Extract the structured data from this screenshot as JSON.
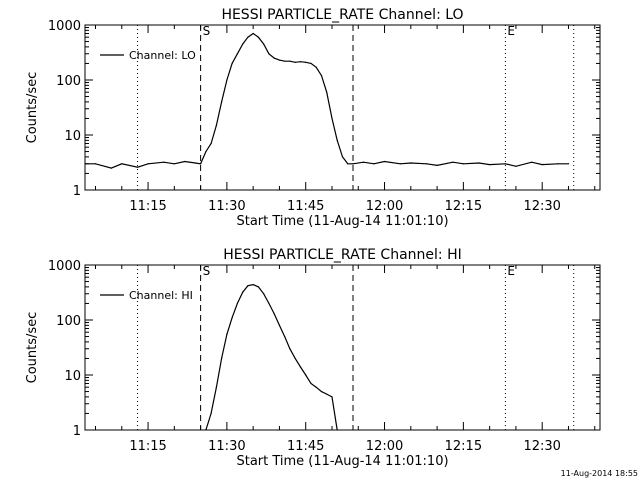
{
  "footer_timestamp": "11-Aug-2014 18:55",
  "chart_data": [
    {
      "type": "line",
      "title": "HESSI PARTICLE_RATE Channel: LO",
      "xlabel": "Start Time (11-Aug-14 11:01:10)",
      "ylabel": "Counts/sec",
      "y_scale": "log",
      "ylim": [
        1,
        1000
      ],
      "xlim": [
        "11:03",
        "12:41"
      ],
      "x_ticks": [
        "11:15",
        "11:30",
        "11:45",
        "12:00",
        "12:15",
        "12:30"
      ],
      "y_ticks": [
        "1",
        "10",
        "100",
        "1000"
      ],
      "legend": {
        "entries": [
          "Channel: LO"
        ],
        "placement": "top-left"
      },
      "vertical_markers": [
        {
          "time": "11:25",
          "style": "dashed",
          "label": "S"
        },
        {
          "time": "11:54",
          "style": "dashed",
          "label": ""
        },
        {
          "time": "11:13",
          "style": "dotted",
          "label": ""
        },
        {
          "time": "12:23",
          "style": "dotted",
          "label": "E"
        },
        {
          "time": "12:36",
          "style": "dotted",
          "label": ""
        }
      ],
      "series": [
        {
          "name": "Channel: LO",
          "x": [
            "11:03",
            "11:05",
            "11:08",
            "11:10",
            "11:13",
            "11:15",
            "11:18",
            "11:20",
            "11:22",
            "11:24",
            "11:25",
            "11:26",
            "11:27",
            "11:28",
            "11:29",
            "11:30",
            "11:31",
            "11:32",
            "11:33",
            "11:34",
            "11:35",
            "11:36",
            "11:37",
            "11:38",
            "11:39",
            "11:40",
            "11:41",
            "11:42",
            "11:43",
            "11:44",
            "11:45",
            "11:46",
            "11:47",
            "11:48",
            "11:49",
            "11:50",
            "11:51",
            "11:52",
            "11:53",
            "11:54",
            "11:56",
            "11:58",
            "12:00",
            "12:03",
            "12:05",
            "12:08",
            "12:10",
            "12:13",
            "12:15",
            "12:18",
            "12:20",
            "12:23",
            "12:25",
            "12:28",
            "12:30",
            "12:33",
            "12:35"
          ],
          "values": [
            3,
            3,
            2.5,
            3,
            2.6,
            3,
            3.2,
            3,
            3.3,
            3.1,
            3,
            5,
            7,
            15,
            40,
            100,
            200,
            300,
            450,
            600,
            700,
            600,
            450,
            300,
            250,
            230,
            220,
            220,
            210,
            215,
            210,
            200,
            170,
            120,
            60,
            20,
            8,
            4,
            3,
            3,
            3.2,
            3,
            3.3,
            3,
            3.1,
            3,
            2.8,
            3.2,
            3,
            3.1,
            2.9,
            3,
            2.7,
            3.2,
            2.9,
            3,
            3
          ]
        }
      ]
    },
    {
      "type": "line",
      "title": "HESSI PARTICLE_RATE Channel: HI",
      "xlabel": "Start Time (11-Aug-14 11:01:10)",
      "ylabel": "Counts/sec",
      "y_scale": "log",
      "ylim": [
        1,
        1000
      ],
      "xlim": [
        "11:03",
        "12:41"
      ],
      "x_ticks": [
        "11:15",
        "11:30",
        "11:45",
        "12:00",
        "12:15",
        "12:30"
      ],
      "y_ticks": [
        "1",
        "10",
        "100",
        "1000"
      ],
      "legend": {
        "entries": [
          "Channel: HI"
        ],
        "placement": "top-left"
      },
      "vertical_markers": [
        {
          "time": "11:25",
          "style": "dashed",
          "label": "S"
        },
        {
          "time": "11:54",
          "style": "dashed",
          "label": ""
        },
        {
          "time": "11:13",
          "style": "dotted",
          "label": ""
        },
        {
          "time": "12:23",
          "style": "dotted",
          "label": "E"
        },
        {
          "time": "12:36",
          "style": "dotted",
          "label": ""
        }
      ],
      "series": [
        {
          "name": "Channel: HI",
          "x": [
            "11:26",
            "11:27",
            "11:28",
            "11:29",
            "11:30",
            "11:31",
            "11:32",
            "11:33",
            "11:34",
            "11:35",
            "11:36",
            "11:37",
            "11:38",
            "11:39",
            "11:40",
            "11:41",
            "11:42",
            "11:43",
            "11:44",
            "11:45",
            "11:46",
            "11:47",
            "11:48",
            "11:49",
            "11:50",
            "11:51"
          ],
          "values": [
            1,
            2,
            6,
            20,
            55,
            110,
            200,
            320,
            420,
            440,
            400,
            300,
            200,
            130,
            80,
            50,
            30,
            20,
            14,
            10,
            7,
            6,
            5,
            4.5,
            4,
            1
          ]
        }
      ]
    }
  ]
}
